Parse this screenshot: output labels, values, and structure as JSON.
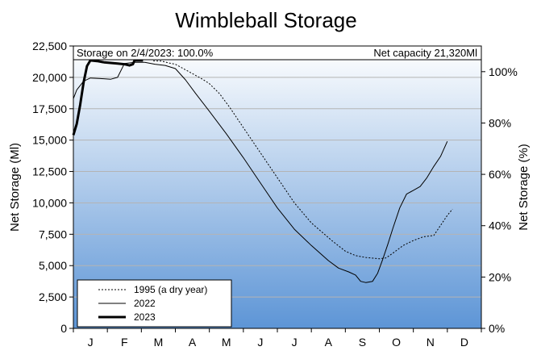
{
  "chart_data": {
    "type": "line",
    "title": "Wimbleball Storage",
    "ylabel": "Net Storage (Ml)",
    "y2label": "Net Storage (%)",
    "ylim": [
      0,
      22500
    ],
    "yticks": [
      "0",
      "2,500",
      "5,000",
      "7,500",
      "10,000",
      "12,500",
      "15,000",
      "17,500",
      "20,000",
      "22,500"
    ],
    "y2lim": [
      0,
      110
    ],
    "y2ticks": [
      "0%",
      "20%",
      "40%",
      "60%",
      "80%",
      "100%"
    ],
    "y2tick_values": [
      0,
      20,
      40,
      60,
      80,
      100
    ],
    "xlim": [
      0,
      12
    ],
    "months": [
      "J",
      "F",
      "M",
      "A",
      "M",
      "J",
      "J",
      "A",
      "S",
      "O",
      "N",
      "D"
    ],
    "capacity": 21320,
    "annotation_left": "Storage on 2/4/2023: 100.0%",
    "annotation_right": "Net capacity 21,320Ml",
    "grid": true,
    "legend_position": "bottom-left",
    "series": [
      {
        "name": "1995 (a dry year)",
        "style": "dotted",
        "color": "#000000",
        "points": [
          [
            2.35,
            21320
          ],
          [
            2.6,
            21300
          ],
          [
            2.8,
            21150
          ],
          [
            3.0,
            21050
          ],
          [
            3.2,
            20750
          ],
          [
            3.5,
            20300
          ],
          [
            3.8,
            19850
          ],
          [
            4.0,
            19500
          ],
          [
            4.3,
            18700
          ],
          [
            4.6,
            17600
          ],
          [
            5.0,
            16000
          ],
          [
            5.5,
            14000
          ],
          [
            6.0,
            12000
          ],
          [
            6.5,
            10000
          ],
          [
            7.0,
            8400
          ],
          [
            7.3,
            7700
          ],
          [
            7.6,
            7000
          ],
          [
            8.0,
            6150
          ],
          [
            8.3,
            5800
          ],
          [
            8.6,
            5650
          ],
          [
            9.0,
            5550
          ],
          [
            9.2,
            5620
          ],
          [
            9.4,
            6000
          ],
          [
            9.7,
            6600
          ],
          [
            10.0,
            7000
          ],
          [
            10.3,
            7300
          ],
          [
            10.6,
            7400
          ],
          [
            10.8,
            8200
          ],
          [
            11.0,
            9000
          ],
          [
            11.15,
            9500
          ]
        ]
      },
      {
        "name": "2022",
        "style": "solid",
        "color": "#000000",
        "points": [
          [
            0.0,
            18300
          ],
          [
            0.1,
            19000
          ],
          [
            0.3,
            19700
          ],
          [
            0.5,
            19950
          ],
          [
            0.8,
            19900
          ],
          [
            1.1,
            19850
          ],
          [
            1.3,
            20000
          ],
          [
            1.5,
            21100
          ],
          [
            1.8,
            21200
          ],
          [
            2.1,
            21200
          ],
          [
            2.4,
            21050
          ],
          [
            2.7,
            20950
          ],
          [
            3.0,
            20700
          ],
          [
            3.3,
            19800
          ],
          [
            3.6,
            18700
          ],
          [
            4.0,
            17300
          ],
          [
            4.5,
            15500
          ],
          [
            5.0,
            13600
          ],
          [
            5.5,
            11600
          ],
          [
            6.0,
            9600
          ],
          [
            6.5,
            7900
          ],
          [
            7.0,
            6600
          ],
          [
            7.5,
            5400
          ],
          [
            7.8,
            4800
          ],
          [
            8.1,
            4500
          ],
          [
            8.3,
            4250
          ],
          [
            8.45,
            3750
          ],
          [
            8.6,
            3650
          ],
          [
            8.8,
            3750
          ],
          [
            8.95,
            4400
          ],
          [
            9.1,
            5500
          ],
          [
            9.25,
            6700
          ],
          [
            9.4,
            8000
          ],
          [
            9.6,
            9600
          ],
          [
            9.8,
            10700
          ],
          [
            10.0,
            11000
          ],
          [
            10.2,
            11300
          ],
          [
            10.4,
            12000
          ],
          [
            10.6,
            12900
          ],
          [
            10.8,
            13700
          ],
          [
            11.0,
            14900
          ]
        ]
      },
      {
        "name": "2023",
        "style": "thick",
        "color": "#000000",
        "points": [
          [
            0.0,
            15400
          ],
          [
            0.1,
            16300
          ],
          [
            0.2,
            17800
          ],
          [
            0.3,
            19600
          ],
          [
            0.4,
            20900
          ],
          [
            0.5,
            21350
          ],
          [
            0.7,
            21300
          ],
          [
            0.9,
            21200
          ],
          [
            1.1,
            21150
          ],
          [
            1.3,
            21100
          ],
          [
            1.5,
            21050
          ],
          [
            1.65,
            20950
          ],
          [
            1.75,
            21050
          ],
          [
            1.8,
            21350
          ],
          [
            2.05,
            21350
          ]
        ]
      }
    ]
  }
}
